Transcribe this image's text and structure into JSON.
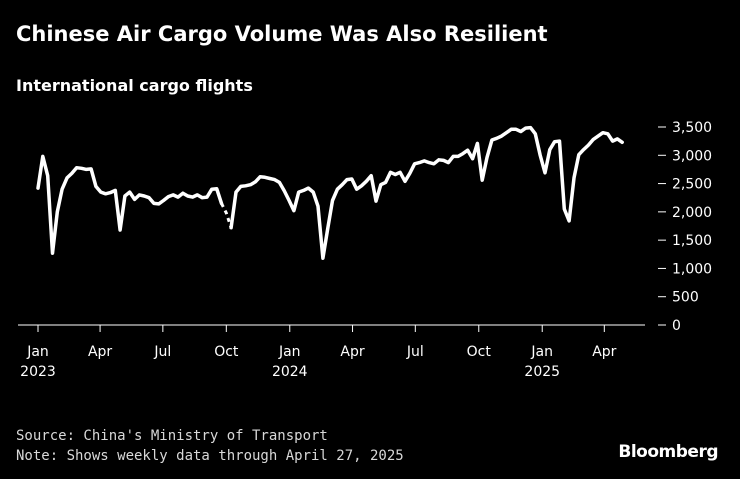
{
  "header": {
    "title": "Chinese Air Cargo Volume Was Also Resilient",
    "subtitle": "International cargo flights"
  },
  "footer": {
    "source": "Source: China's Ministry of Transport",
    "note": "Note: Shows weekly data through April 27, 2025",
    "brand": "Bloomberg"
  },
  "chart_data": {
    "type": "line",
    "title": "Chinese Air Cargo Volume Was Also Resilient",
    "subtitle": "International cargo flights",
    "xlabel": "",
    "ylabel": "",
    "ylim": [
      0,
      3500
    ],
    "yticks": [
      0,
      500,
      1000,
      1500,
      2000,
      2500,
      3000,
      3500
    ],
    "ytick_labels": [
      "0",
      "500",
      "1,000",
      "1,500",
      "2,000",
      "2,500",
      "3,000",
      "3,500"
    ],
    "y_axis_side": "right",
    "grid": false,
    "line_color": "#ffffff",
    "background": "#000000",
    "xticks": [
      {
        "date": "2023-01-01",
        "label": "Jan",
        "year": "2023"
      },
      {
        "date": "2023-04-01",
        "label": "Apr",
        "year": ""
      },
      {
        "date": "2023-07-01",
        "label": "Jul",
        "year": ""
      },
      {
        "date": "2023-10-01",
        "label": "Oct",
        "year": ""
      },
      {
        "date": "2024-01-01",
        "label": "Jan",
        "year": "2024"
      },
      {
        "date": "2024-04-01",
        "label": "Apr",
        "year": ""
      },
      {
        "date": "2024-07-01",
        "label": "Jul",
        "year": ""
      },
      {
        "date": "2024-10-01",
        "label": "Oct",
        "year": ""
      },
      {
        "date": "2025-01-01",
        "label": "Jan",
        "year": "2025"
      },
      {
        "date": "2025-04-01",
        "label": "Apr",
        "year": ""
      }
    ],
    "gap": {
      "from": "2023-09-24",
      "to": "2023-10-08",
      "style": "dashed"
    },
    "series": [
      {
        "name": "",
        "points": [
          [
            "2023-01-01",
            2420
          ],
          [
            "2023-01-08",
            2980
          ],
          [
            "2023-01-15",
            2640
          ],
          [
            "2023-01-22",
            1270
          ],
          [
            "2023-01-29",
            2000
          ],
          [
            "2023-02-05",
            2400
          ],
          [
            "2023-02-12",
            2600
          ],
          [
            "2023-02-19",
            2680
          ],
          [
            "2023-02-26",
            2780
          ],
          [
            "2023-03-05",
            2770
          ],
          [
            "2023-03-12",
            2750
          ],
          [
            "2023-03-19",
            2760
          ],
          [
            "2023-03-26",
            2450
          ],
          [
            "2023-04-02",
            2350
          ],
          [
            "2023-04-09",
            2320
          ],
          [
            "2023-04-16",
            2340
          ],
          [
            "2023-04-23",
            2380
          ],
          [
            "2023-04-30",
            1680
          ],
          [
            "2023-05-07",
            2280
          ],
          [
            "2023-05-14",
            2350
          ],
          [
            "2023-05-21",
            2220
          ],
          [
            "2023-05-28",
            2300
          ],
          [
            "2023-06-04",
            2280
          ],
          [
            "2023-06-11",
            2250
          ],
          [
            "2023-06-18",
            2150
          ],
          [
            "2023-06-25",
            2140
          ],
          [
            "2023-07-02",
            2200
          ],
          [
            "2023-07-09",
            2270
          ],
          [
            "2023-07-16",
            2300
          ],
          [
            "2023-07-23",
            2260
          ],
          [
            "2023-07-30",
            2330
          ],
          [
            "2023-08-06",
            2280
          ],
          [
            "2023-08-13",
            2260
          ],
          [
            "2023-08-20",
            2300
          ],
          [
            "2023-08-27",
            2250
          ],
          [
            "2023-09-03",
            2260
          ],
          [
            "2023-09-10",
            2400
          ],
          [
            "2023-09-17",
            2410
          ],
          [
            "2023-09-24",
            2150
          ],
          [
            "2023-10-01",
            1980
          ],
          [
            "2023-10-08",
            1720
          ],
          [
            "2023-10-15",
            2350
          ],
          [
            "2023-10-22",
            2450
          ],
          [
            "2023-10-29",
            2460
          ],
          [
            "2023-11-05",
            2480
          ],
          [
            "2023-11-12",
            2530
          ],
          [
            "2023-11-19",
            2620
          ],
          [
            "2023-11-26",
            2610
          ],
          [
            "2023-12-03",
            2590
          ],
          [
            "2023-12-10",
            2570
          ],
          [
            "2023-12-17",
            2520
          ],
          [
            "2023-12-24",
            2370
          ],
          [
            "2023-12-31",
            2200
          ],
          [
            "2024-01-07",
            2020
          ],
          [
            "2024-01-14",
            2350
          ],
          [
            "2024-01-21",
            2380
          ],
          [
            "2024-01-28",
            2420
          ],
          [
            "2024-02-04",
            2350
          ],
          [
            "2024-02-11",
            2100
          ],
          [
            "2024-02-18",
            1180
          ],
          [
            "2024-02-25",
            1700
          ],
          [
            "2024-03-03",
            2200
          ],
          [
            "2024-03-10",
            2400
          ],
          [
            "2024-03-17",
            2480
          ],
          [
            "2024-03-24",
            2570
          ],
          [
            "2024-03-31",
            2580
          ],
          [
            "2024-04-07",
            2400
          ],
          [
            "2024-04-14",
            2460
          ],
          [
            "2024-04-21",
            2540
          ],
          [
            "2024-04-28",
            2640
          ],
          [
            "2024-05-05",
            2190
          ],
          [
            "2024-05-12",
            2480
          ],
          [
            "2024-05-19",
            2520
          ],
          [
            "2024-05-26",
            2700
          ],
          [
            "2024-06-02",
            2660
          ],
          [
            "2024-06-09",
            2700
          ],
          [
            "2024-06-16",
            2540
          ],
          [
            "2024-06-23",
            2680
          ],
          [
            "2024-06-30",
            2850
          ],
          [
            "2024-07-07",
            2870
          ],
          [
            "2024-07-14",
            2900
          ],
          [
            "2024-07-21",
            2870
          ],
          [
            "2024-07-28",
            2850
          ],
          [
            "2024-08-04",
            2920
          ],
          [
            "2024-08-11",
            2910
          ],
          [
            "2024-08-18",
            2870
          ],
          [
            "2024-08-25",
            2980
          ],
          [
            "2024-09-01",
            2980
          ],
          [
            "2024-09-08",
            3030
          ],
          [
            "2024-09-15",
            3090
          ],
          [
            "2024-09-22",
            2940
          ],
          [
            "2024-09-29",
            3210
          ],
          [
            "2024-10-06",
            2560
          ],
          [
            "2024-10-13",
            2960
          ],
          [
            "2024-10-20",
            3270
          ],
          [
            "2024-10-27",
            3300
          ],
          [
            "2024-11-03",
            3340
          ],
          [
            "2024-11-10",
            3400
          ],
          [
            "2024-11-17",
            3460
          ],
          [
            "2024-11-24",
            3460
          ],
          [
            "2024-12-01",
            3420
          ],
          [
            "2024-12-08",
            3480
          ],
          [
            "2024-12-15",
            3490
          ],
          [
            "2024-12-22",
            3380
          ],
          [
            "2024-12-29",
            3000
          ],
          [
            "2025-01-05",
            2690
          ],
          [
            "2025-01-12",
            3100
          ],
          [
            "2025-01-19",
            3240
          ],
          [
            "2025-01-26",
            3250
          ],
          [
            "2025-02-02",
            2050
          ],
          [
            "2025-02-09",
            1840
          ],
          [
            "2025-02-16",
            2600
          ],
          [
            "2025-02-23",
            3010
          ],
          [
            "2025-03-02",
            3100
          ],
          [
            "2025-03-09",
            3180
          ],
          [
            "2025-03-16",
            3280
          ],
          [
            "2025-03-23",
            3340
          ],
          [
            "2025-03-30",
            3400
          ],
          [
            "2025-04-06",
            3380
          ],
          [
            "2025-04-13",
            3250
          ],
          [
            "2025-04-20",
            3290
          ],
          [
            "2025-04-27",
            3230
          ]
        ]
      }
    ]
  }
}
